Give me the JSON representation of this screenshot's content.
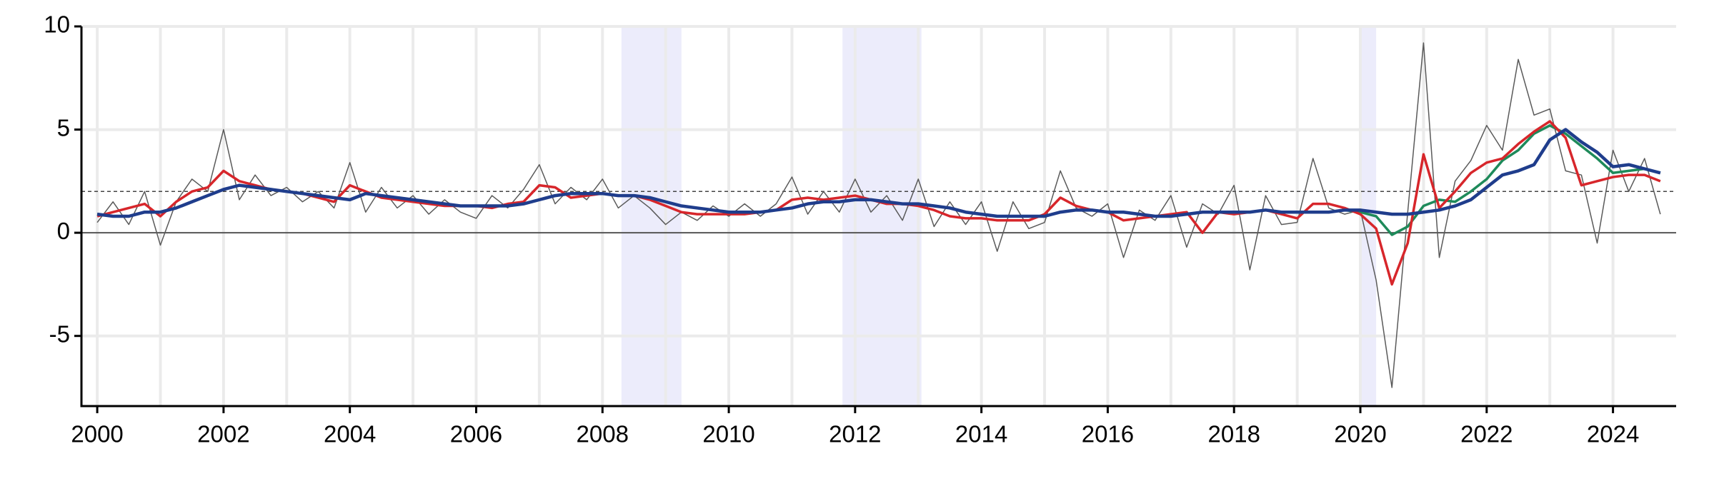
{
  "chart_data": {
    "type": "line",
    "xlim": [
      1999.75,
      2025
    ],
    "ylim": [
      -8.4,
      10
    ],
    "xticks": [
      2000,
      2002,
      2004,
      2006,
      2008,
      2010,
      2012,
      2014,
      2016,
      2018,
      2020,
      2022,
      2024
    ],
    "xminor": [
      2001,
      2003,
      2005,
      2007,
      2009,
      2011,
      2013,
      2015,
      2017,
      2019,
      2021,
      2023
    ],
    "yticks": [
      -5,
      0,
      5,
      10
    ],
    "grid": true,
    "reference_line": 2,
    "shaded_periods": [
      [
        2008.3,
        2009.25
      ],
      [
        2011.8,
        2013.05
      ],
      [
        2020.0,
        2020.25
      ]
    ],
    "x": [
      2000,
      2000.25,
      2000.5,
      2000.75,
      2001,
      2001.25,
      2001.5,
      2001.75,
      2002,
      2002.25,
      2002.5,
      2002.75,
      2003,
      2003.25,
      2003.5,
      2003.75,
      2004,
      2004.25,
      2004.5,
      2004.75,
      2005,
      2005.25,
      2005.5,
      2005.75,
      2006,
      2006.25,
      2006.5,
      2006.75,
      2007,
      2007.25,
      2007.5,
      2007.75,
      2008,
      2008.25,
      2008.5,
      2008.75,
      2009,
      2009.25,
      2009.5,
      2009.75,
      2010,
      2010.25,
      2010.5,
      2010.75,
      2011,
      2011.25,
      2011.5,
      2011.75,
      2012,
      2012.25,
      2012.5,
      2012.75,
      2013,
      2013.25,
      2013.5,
      2013.75,
      2014,
      2014.25,
      2014.5,
      2014.75,
      2015,
      2015.25,
      2015.5,
      2015.75,
      2016,
      2016.25,
      2016.5,
      2016.75,
      2017,
      2017.25,
      2017.5,
      2017.75,
      2018,
      2018.25,
      2018.5,
      2018.75,
      2019,
      2019.25,
      2019.5,
      2019.75,
      2020,
      2020.25,
      2020.5,
      2020.75,
      2021,
      2021.25,
      2021.5,
      2021.75,
      2022,
      2022.25,
      2022.5,
      2022.75,
      2023,
      2023.25,
      2023.5,
      2023.75,
      2024,
      2024.25,
      2024.5,
      2024.75
    ],
    "series": [
      {
        "color": "#5a5a5a",
        "width": 1.5,
        "values": [
          0.5,
          1.5,
          0.4,
          2.0,
          -0.6,
          1.5,
          2.6,
          2.0,
          5.0,
          1.6,
          2.8,
          1.8,
          2.2,
          1.5,
          2.0,
          1.2,
          3.4,
          1.0,
          2.2,
          1.2,
          1.8,
          0.9,
          1.6,
          1.0,
          0.7,
          1.8,
          1.2,
          2.1,
          3.3,
          1.4,
          2.2,
          1.6,
          2.6,
          1.2,
          1.8,
          1.2,
          0.4,
          1.0,
          0.6,
          1.3,
          0.8,
          1.4,
          0.8,
          1.4,
          2.7,
          0.9,
          2.0,
          1.0,
          2.6,
          1.0,
          1.8,
          0.6,
          2.6,
          0.3,
          1.5,
          0.4,
          1.5,
          -0.9,
          1.5,
          0.2,
          0.5,
          3.0,
          1.2,
          0.8,
          1.4,
          -1.2,
          1.1,
          0.6,
          1.8,
          -0.7,
          1.4,
          0.9,
          2.3,
          -1.8,
          1.8,
          0.4,
          0.5,
          3.6,
          1.2,
          0.9,
          1.1,
          -2.3,
          -7.5,
          1.0,
          9.2,
          -1.2,
          2.5,
          3.5,
          5.2,
          4.0,
          8.4,
          5.7,
          6.0,
          3.0,
          2.8,
          -0.5,
          4.0,
          2.0,
          3.6,
          0.9
        ]
      },
      {
        "color": "#1e8a5a",
        "width": 3.5,
        "values": [
          0.9,
          0.8,
          0.8,
          1.0,
          1.0,
          1.2,
          1.5,
          1.8,
          2.1,
          2.3,
          2.2,
          2.1,
          2.0,
          1.9,
          1.8,
          1.7,
          1.6,
          1.9,
          1.8,
          1.7,
          1.6,
          1.5,
          1.4,
          1.3,
          1.3,
          1.3,
          1.3,
          1.4,
          1.6,
          1.8,
          1.9,
          1.9,
          1.9,
          1.8,
          1.8,
          1.7,
          1.5,
          1.3,
          1.2,
          1.1,
          1.0,
          1.0,
          1.0,
          1.1,
          1.2,
          1.4,
          1.5,
          1.5,
          1.6,
          1.6,
          1.5,
          1.4,
          1.4,
          1.3,
          1.2,
          1.0,
          0.9,
          0.8,
          0.8,
          0.8,
          0.8,
          1.0,
          1.1,
          1.1,
          1.0,
          1.0,
          0.9,
          0.8,
          0.8,
          0.9,
          1.0,
          1.0,
          1.0,
          1.0,
          1.1,
          1.0,
          1.0,
          1.0,
          1.0,
          1.1,
          1.0,
          0.8,
          -0.1,
          0.3,
          1.3,
          1.6,
          1.5,
          2.0,
          2.6,
          3.5,
          4.0,
          4.8,
          5.2,
          4.8,
          4.2,
          3.6,
          2.9,
          3.0,
          3.1,
          2.9
        ]
      },
      {
        "color": "#d7262b",
        "width": 3.5,
        "values": [
          0.8,
          1.0,
          1.2,
          1.4,
          0.8,
          1.5,
          2.0,
          2.2,
          3.0,
          2.5,
          2.3,
          2.1,
          2.0,
          1.9,
          1.7,
          1.5,
          2.3,
          2.0,
          1.7,
          1.6,
          1.5,
          1.4,
          1.3,
          1.3,
          1.3,
          1.2,
          1.4,
          1.5,
          2.3,
          2.2,
          1.7,
          1.8,
          1.9,
          1.8,
          1.8,
          1.6,
          1.3,
          1.0,
          0.9,
          0.9,
          0.9,
          0.9,
          1.0,
          1.1,
          1.6,
          1.7,
          1.6,
          1.7,
          1.8,
          1.6,
          1.4,
          1.4,
          1.3,
          1.1,
          0.8,
          0.7,
          0.7,
          0.6,
          0.6,
          0.6,
          0.9,
          1.7,
          1.3,
          1.1,
          1.0,
          0.6,
          0.7,
          0.8,
          0.9,
          1.0,
          0.0,
          1.0,
          0.9,
          1.0,
          1.1,
          0.9,
          0.7,
          1.4,
          1.4,
          1.2,
          0.9,
          0.2,
          -2.5,
          -0.5,
          3.8,
          1.2,
          2.0,
          2.9,
          3.4,
          3.6,
          4.3,
          4.9,
          5.4,
          4.6,
          2.3,
          2.5,
          2.7,
          2.8,
          2.8,
          2.5
        ]
      },
      {
        "color": "#1f3d8c",
        "width": 4.5,
        "values": [
          0.9,
          0.8,
          0.8,
          1.0,
          1.0,
          1.2,
          1.5,
          1.8,
          2.1,
          2.3,
          2.2,
          2.1,
          2.0,
          1.9,
          1.8,
          1.7,
          1.6,
          1.9,
          1.8,
          1.7,
          1.6,
          1.5,
          1.4,
          1.3,
          1.3,
          1.3,
          1.3,
          1.4,
          1.6,
          1.8,
          1.9,
          1.9,
          1.9,
          1.8,
          1.8,
          1.7,
          1.5,
          1.3,
          1.2,
          1.1,
          1.0,
          1.0,
          1.0,
          1.1,
          1.2,
          1.4,
          1.5,
          1.5,
          1.6,
          1.6,
          1.5,
          1.4,
          1.4,
          1.3,
          1.2,
          1.0,
          0.9,
          0.8,
          0.8,
          0.8,
          0.8,
          1.0,
          1.1,
          1.1,
          1.0,
          1.0,
          0.9,
          0.8,
          0.8,
          0.9,
          1.0,
          1.0,
          1.0,
          1.0,
          1.1,
          1.0,
          1.0,
          1.0,
          1.0,
          1.1,
          1.1,
          1.0,
          0.9,
          0.9,
          1.0,
          1.1,
          1.3,
          1.6,
          2.2,
          2.8,
          3.0,
          3.3,
          4.5,
          5.0,
          4.4,
          3.9,
          3.2,
          3.3,
          3.1,
          2.9
        ]
      }
    ]
  }
}
